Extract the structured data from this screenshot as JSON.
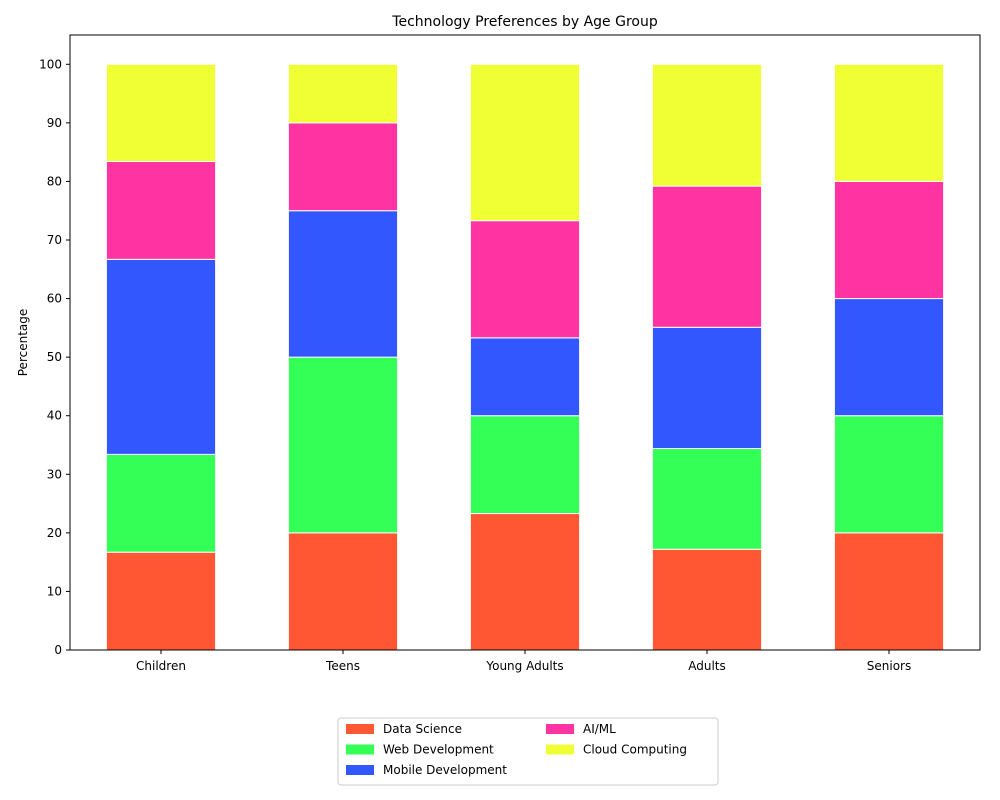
{
  "chart_data": {
    "type": "bar",
    "stacked": true,
    "title": "Technology Preferences by Age Group",
    "xlabel": "",
    "ylabel": "Percentage",
    "ylim": [
      0,
      105
    ],
    "yticks": [
      0,
      10,
      20,
      30,
      40,
      50,
      60,
      70,
      80,
      90,
      100
    ],
    "grid": false,
    "legend_position": "bottom-center",
    "categories": [
      "Children",
      "Teens",
      "Young Adults",
      "Adults",
      "Seniors"
    ],
    "series": [
      {
        "name": "Data Science",
        "color": "#ff5733",
        "values": [
          16.7,
          20.0,
          23.3,
          17.2,
          20.0
        ]
      },
      {
        "name": "Web Development",
        "color": "#33ff57",
        "values": [
          16.7,
          30.0,
          16.7,
          17.2,
          20.0
        ]
      },
      {
        "name": "Mobile Development",
        "color": "#3357ff",
        "values": [
          33.3,
          25.0,
          13.3,
          20.7,
          20.0
        ]
      },
      {
        "name": "AI/ML",
        "color": "#ff33a1",
        "values": [
          16.7,
          15.0,
          20.0,
          24.1,
          20.0
        ]
      },
      {
        "name": "Cloud Computing",
        "color": "#f0ff33",
        "values": [
          16.6,
          10.0,
          26.7,
          20.8,
          20.0
        ]
      }
    ]
  }
}
